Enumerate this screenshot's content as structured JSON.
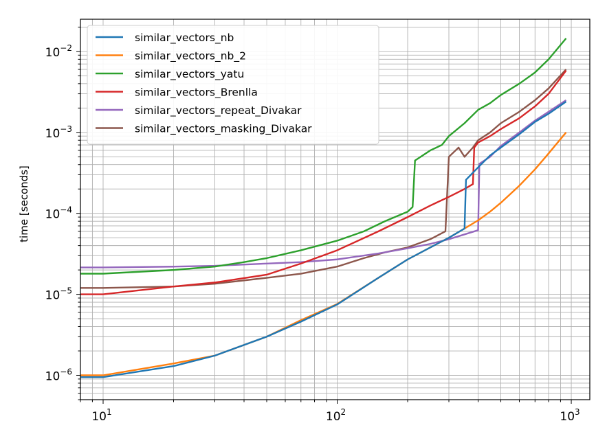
{
  "chart_data": {
    "type": "line",
    "title": "",
    "xlabel": "",
    "ylabel": "time [seconds]",
    "xscale": "log",
    "yscale": "log",
    "xlim": [
      8,
      1200
    ],
    "ylim": [
      5e-07,
      0.025
    ],
    "grid": "major and minor",
    "legend_position": "upper-left",
    "x_ticks": [
      {
        "base": "10",
        "exp": "1"
      },
      {
        "base": "10",
        "exp": "2"
      },
      {
        "base": "10",
        "exp": "3"
      }
    ],
    "y_ticks": [
      {
        "base": "10",
        "exp": "−6"
      },
      {
        "base": "10",
        "exp": "−5"
      },
      {
        "base": "10",
        "exp": "−4"
      },
      {
        "base": "10",
        "exp": "−3"
      },
      {
        "base": "10",
        "exp": "−2"
      }
    ],
    "series": [
      {
        "name": "similar_vectors_nb",
        "color": "#1f77b4",
        "points": [
          [
            8,
            9.5e-07
          ],
          [
            10,
            9.5e-07
          ],
          [
            20,
            1.3e-06
          ],
          [
            30,
            1.75e-06
          ],
          [
            50,
            3e-06
          ],
          [
            70,
            4.6e-06
          ],
          [
            100,
            7.5e-06
          ],
          [
            150,
            1.6e-05
          ],
          [
            200,
            2.7e-05
          ],
          [
            250,
            3.8e-05
          ],
          [
            300,
            5e-05
          ],
          [
            350,
            6.5e-05
          ],
          [
            355,
            0.00026
          ],
          [
            400,
            0.00037
          ],
          [
            450,
            0.00052
          ],
          [
            500,
            0.00065
          ],
          [
            600,
            0.00095
          ],
          [
            700,
            0.00135
          ],
          [
            800,
            0.0017
          ],
          [
            950,
            0.0024
          ]
        ]
      },
      {
        "name": "similar_vectors_nb_2",
        "color": "#ff7f0e",
        "points": [
          [
            8,
            1e-06
          ],
          [
            10,
            1e-06
          ],
          [
            20,
            1.4e-06
          ],
          [
            30,
            1.75e-06
          ],
          [
            50,
            3e-06
          ],
          [
            70,
            4.8e-06
          ],
          [
            100,
            7.6e-06
          ],
          [
            150,
            1.6e-05
          ],
          [
            200,
            2.7e-05
          ],
          [
            250,
            3.8e-05
          ],
          [
            300,
            5e-05
          ],
          [
            350,
            6.5e-05
          ],
          [
            400,
            8.2e-05
          ],
          [
            450,
            0.000105
          ],
          [
            500,
            0.000135
          ],
          [
            600,
            0.00022
          ],
          [
            700,
            0.00035
          ],
          [
            800,
            0.00055
          ],
          [
            950,
            0.001
          ]
        ]
      },
      {
        "name": "similar_vectors_yatu",
        "color": "#2ca02c",
        "points": [
          [
            8,
            1.8e-05
          ],
          [
            10,
            1.8e-05
          ],
          [
            20,
            2e-05
          ],
          [
            30,
            2.2e-05
          ],
          [
            40,
            2.5e-05
          ],
          [
            50,
            2.8e-05
          ],
          [
            70,
            3.5e-05
          ],
          [
            100,
            4.6e-05
          ],
          [
            130,
            6e-05
          ],
          [
            160,
            8e-05
          ],
          [
            200,
            0.000105
          ],
          [
            210,
            0.00012
          ],
          [
            215,
            0.00045
          ],
          [
            250,
            0.0006
          ],
          [
            280,
            0.0007
          ],
          [
            300,
            0.0009
          ],
          [
            350,
            0.0013
          ],
          [
            400,
            0.0019
          ],
          [
            450,
            0.0023
          ],
          [
            500,
            0.0029
          ],
          [
            600,
            0.004
          ],
          [
            700,
            0.0055
          ],
          [
            800,
            0.008
          ],
          [
            950,
            0.0145
          ]
        ]
      },
      {
        "name": "similar_vectors_Brenlla",
        "color": "#d62728",
        "points": [
          [
            8,
            1e-05
          ],
          [
            10,
            1e-05
          ],
          [
            20,
            1.25e-05
          ],
          [
            30,
            1.4e-05
          ],
          [
            50,
            1.75e-05
          ],
          [
            70,
            2.4e-05
          ],
          [
            100,
            3.5e-05
          ],
          [
            150,
            6e-05
          ],
          [
            200,
            9e-05
          ],
          [
            250,
            0.000125
          ],
          [
            300,
            0.00016
          ],
          [
            350,
            0.0002
          ],
          [
            380,
            0.00023
          ],
          [
            385,
            0.00065
          ],
          [
            400,
            0.00075
          ],
          [
            450,
            0.0009
          ],
          [
            500,
            0.0011
          ],
          [
            600,
            0.0015
          ],
          [
            700,
            0.0021
          ],
          [
            800,
            0.003
          ],
          [
            950,
            0.0058
          ]
        ]
      },
      {
        "name": "similar_vectors_repeat_Divakar",
        "color": "#9467bd",
        "points": [
          [
            8,
            2.15e-05
          ],
          [
            10,
            2.15e-05
          ],
          [
            20,
            2.2e-05
          ],
          [
            30,
            2.25e-05
          ],
          [
            50,
            2.4e-05
          ],
          [
            70,
            2.5e-05
          ],
          [
            100,
            2.7e-05
          ],
          [
            150,
            3.2e-05
          ],
          [
            200,
            3.7e-05
          ],
          [
            250,
            4.2e-05
          ],
          [
            300,
            4.8e-05
          ],
          [
            350,
            5.5e-05
          ],
          [
            400,
            6.2e-05
          ],
          [
            405,
            0.00041
          ],
          [
            450,
            0.0005
          ],
          [
            500,
            0.00068
          ],
          [
            600,
            0.001
          ],
          [
            700,
            0.0014
          ],
          [
            800,
            0.0018
          ],
          [
            950,
            0.0025
          ]
        ]
      },
      {
        "name": "similar_vectors_masking_Divakar",
        "color": "#8c564b",
        "points": [
          [
            8,
            1.2e-05
          ],
          [
            10,
            1.2e-05
          ],
          [
            20,
            1.25e-05
          ],
          [
            30,
            1.35e-05
          ],
          [
            50,
            1.6e-05
          ],
          [
            70,
            1.8e-05
          ],
          [
            100,
            2.2e-05
          ],
          [
            130,
            2.8e-05
          ],
          [
            160,
            3.3e-05
          ],
          [
            200,
            3.8e-05
          ],
          [
            250,
            4.8e-05
          ],
          [
            290,
            6e-05
          ],
          [
            300,
            0.0005
          ],
          [
            330,
            0.00065
          ],
          [
            350,
            0.0005
          ],
          [
            380,
            0.00065
          ],
          [
            400,
            0.0008
          ],
          [
            450,
            0.001
          ],
          [
            500,
            0.0013
          ],
          [
            600,
            0.0018
          ],
          [
            700,
            0.0025
          ],
          [
            800,
            0.0035
          ],
          [
            950,
            0.006
          ]
        ]
      }
    ]
  }
}
